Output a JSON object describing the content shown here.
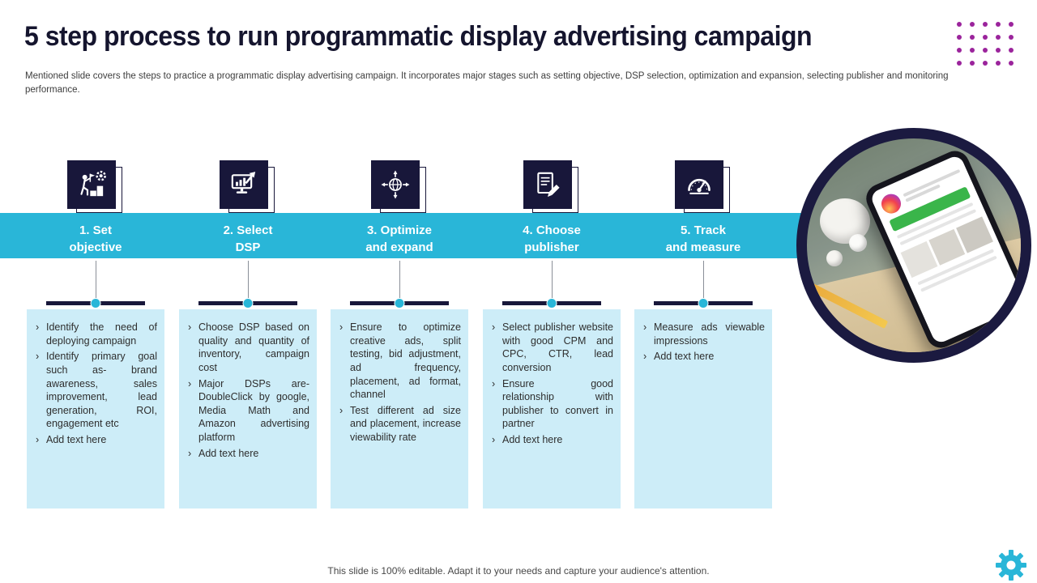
{
  "slide": {
    "title": "5 step process to run programmatic display advertising campaign",
    "subtitle": "Mentioned slide covers the steps to practice a programmatic display advertising campaign. It incorporates major stages such as setting objective, DSP selection, optimization and expansion, selecting publisher and monitoring performance.",
    "footer": "This slide is 100% editable. Adapt it to your needs and capture your audience's attention."
  },
  "steps": [
    {
      "label": "1. Set\nobjective",
      "icon": "objective-stairs-icon",
      "bullets": [
        "Identify the need of deploying campaign",
        "Identify primary goal such as- brand awareness, sales improvement, lead generation, ROI, engagement etc",
        "Add text here"
      ]
    },
    {
      "label": "2. Select\nDSP",
      "icon": "monitor-chart-icon",
      "bullets": [
        "Choose DSP based on quality and quantity of inventory, campaign cost",
        "Major DSPs are- DoubleClick by google, Media Math and Amazon advertising platform",
        "Add text here"
      ]
    },
    {
      "label": "3. Optimize\nand expand",
      "icon": "globe-expand-icon",
      "bullets": [
        "Ensure to optimize creative ads, split testing, bid adjustment, ad frequency, placement, ad format, channel",
        "Test different ad size and placement, increase viewability rate"
      ]
    },
    {
      "label": "4. Choose\npublisher",
      "icon": "document-pencil-icon",
      "bullets": [
        "Select publisher website with good CPM and CPC, CTR, lead conversion",
        "Ensure good relationship with publisher to convert in partner",
        "Add text here"
      ]
    },
    {
      "label": "5. Track\nand measure",
      "icon": "gauge-icon",
      "bullets": [
        "Measure ads viewable impressions",
        "Add text here"
      ]
    }
  ],
  "colors": {
    "accent_cyan": "#29b6d8",
    "navy": "#18173a",
    "light_blue": "#cdedf8",
    "magenta": "#9b249c"
  },
  "decor": {
    "dot_grid": {
      "rows": 4,
      "cols": 5
    }
  }
}
